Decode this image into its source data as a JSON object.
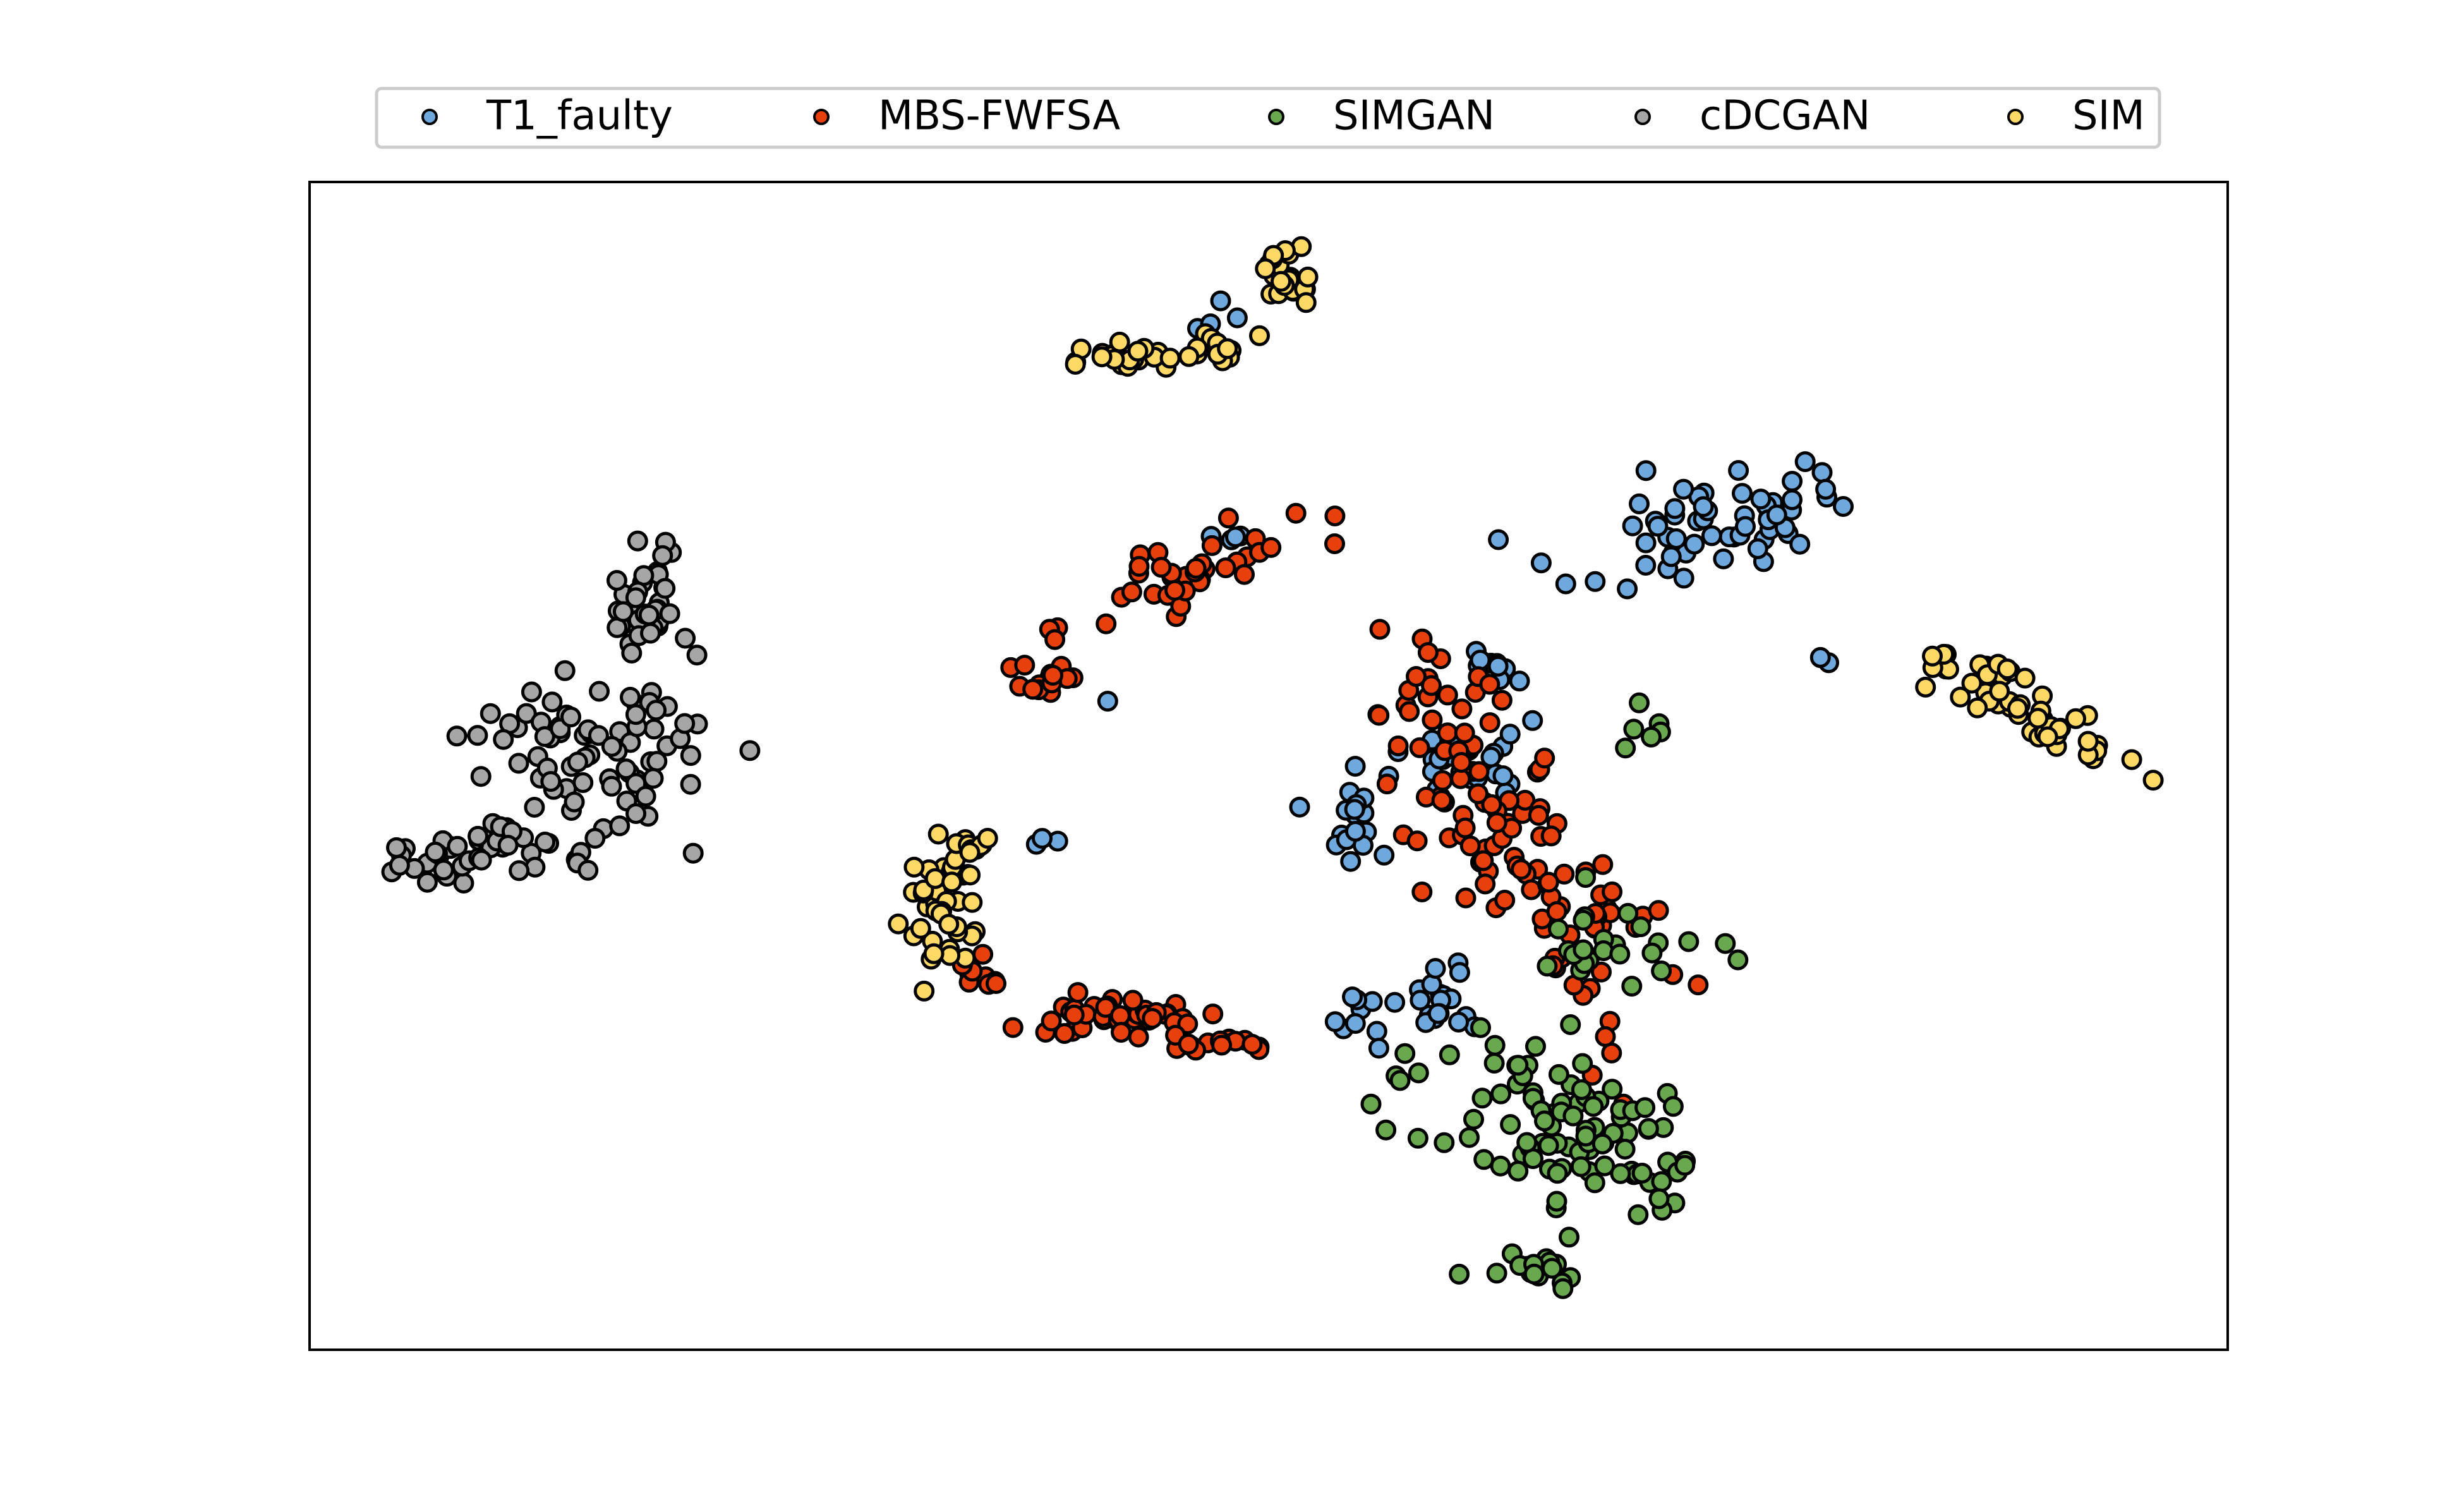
{
  "chart_data": {
    "type": "scatter",
    "title": "",
    "xlabel": "",
    "ylabel": "",
    "xlim": [
      0,
      100
    ],
    "ylim": [
      0,
      100
    ],
    "ticks": "hidden",
    "grid": false,
    "legend": {
      "placement": "top-center, above plot",
      "columns": 5
    },
    "marker": {
      "shape": "circle",
      "edgecolor": "#000000"
    },
    "series": [
      {
        "name": "T1_faulty",
        "color": "#6fa8dc",
        "clusters": [
          {
            "cx": 72.5,
            "cy": 70.5,
            "sx": 4.0,
            "sy": 2.2,
            "n": 60,
            "angle": 30
          },
          {
            "cx": 60.5,
            "cy": 50.5,
            "sx": 1.6,
            "sy": 2.0,
            "n": 28
          },
          {
            "cx": 62.0,
            "cy": 58.5,
            "sx": 1.0,
            "sy": 1.0,
            "n": 10
          },
          {
            "cx": 54.0,
            "cy": 46.0,
            "sx": 1.1,
            "sy": 2.0,
            "n": 18
          },
          {
            "cx": 59.0,
            "cy": 30.0,
            "sx": 1.0,
            "sy": 2.0,
            "n": 18
          },
          {
            "cx": 55.0,
            "cy": 29.0,
            "sx": 0.9,
            "sy": 1.2,
            "n": 10
          },
          {
            "cx": 79.5,
            "cy": 59.0,
            "sx": 0.6,
            "sy": 0.5,
            "n": 3
          },
          {
            "cx": 47.5,
            "cy": 87.5,
            "sx": 0.8,
            "sy": 0.9,
            "n": 4
          },
          {
            "cx": 48.5,
            "cy": 69.5,
            "sx": 1.0,
            "sy": 0.3,
            "n": 4
          },
          {
            "cx": 38.0,
            "cy": 43.5,
            "sx": 1.0,
            "sy": 0.3,
            "n": 3
          },
          {
            "cx": 41.5,
            "cy": 55.5,
            "sx": 0.3,
            "sy": 0.3,
            "n": 1
          }
        ]
      },
      {
        "name": "MBS-FWFSA",
        "color": "#e8400c",
        "clusters": [
          {
            "cx": 62.5,
            "cy": 45.0,
            "sx": 2.2,
            "sy": 9.5,
            "n": 120,
            "angle": 20
          },
          {
            "cx": 46.0,
            "cy": 66.5,
            "sx": 3.5,
            "sy": 1.6,
            "n": 38,
            "angle": 30
          },
          {
            "cx": 38.5,
            "cy": 57.5,
            "sx": 0.8,
            "sy": 1.2,
            "n": 14
          },
          {
            "cx": 41.5,
            "cy": 28.5,
            "sx": 3.0,
            "sy": 0.8,
            "n": 40
          },
          {
            "cx": 47.5,
            "cy": 26.5,
            "sx": 1.6,
            "sy": 0.5,
            "n": 16
          },
          {
            "cx": 35.0,
            "cy": 32.5,
            "sx": 0.8,
            "sy": 1.2,
            "n": 10
          }
        ]
      },
      {
        "name": "SIMGAN",
        "color": "#6aa84f",
        "clusters": [
          {
            "cx": 66.0,
            "cy": 19.0,
            "sx": 3.2,
            "sy": 4.5,
            "n": 100,
            "angle": 30
          },
          {
            "cx": 68.0,
            "cy": 35.0,
            "sx": 2.2,
            "sy": 1.8,
            "n": 24
          },
          {
            "cx": 64.0,
            "cy": 6.5,
            "sx": 1.4,
            "sy": 1.0,
            "n": 18
          },
          {
            "cx": 69.5,
            "cy": 53.5,
            "sx": 0.8,
            "sy": 1.2,
            "n": 6
          }
        ]
      },
      {
        "name": "cDCGAN",
        "color": "#a6a6a6",
        "clusters": [
          {
            "cx": 14.5,
            "cy": 51.5,
            "sx": 3.2,
            "sy": 3.2,
            "n": 70,
            "angle": 35
          },
          {
            "cx": 9.0,
            "cy": 42.5,
            "sx": 2.8,
            "sy": 1.1,
            "n": 45,
            "angle": 20
          },
          {
            "cx": 17.5,
            "cy": 64.5,
            "sx": 0.9,
            "sy": 3.0,
            "n": 35
          },
          {
            "cx": 17.8,
            "cy": 55.5,
            "sx": 0.6,
            "sy": 0.6,
            "n": 6
          },
          {
            "cx": 14.0,
            "cy": 41.0,
            "sx": 0.3,
            "sy": 0.3,
            "n": 2
          }
        ]
      },
      {
        "name": "SIM",
        "color": "#ffd966",
        "clusters": [
          {
            "cx": 89.5,
            "cy": 55.0,
            "sx": 3.2,
            "sy": 1.0,
            "n": 55,
            "angle": -45
          },
          {
            "cx": 51.0,
            "cy": 92.0,
            "sx": 0.8,
            "sy": 1.2,
            "n": 24
          },
          {
            "cx": 47.5,
            "cy": 86.0,
            "sx": 0.9,
            "sy": 0.8,
            "n": 12
          },
          {
            "cx": 42.5,
            "cy": 85.0,
            "sx": 1.8,
            "sy": 0.5,
            "n": 22
          },
          {
            "cx": 33.0,
            "cy": 38.0,
            "sx": 1.0,
            "sy": 2.6,
            "n": 42
          },
          {
            "cx": 34.5,
            "cy": 43.0,
            "sx": 0.6,
            "sy": 1.0,
            "n": 10
          }
        ]
      }
    ]
  }
}
